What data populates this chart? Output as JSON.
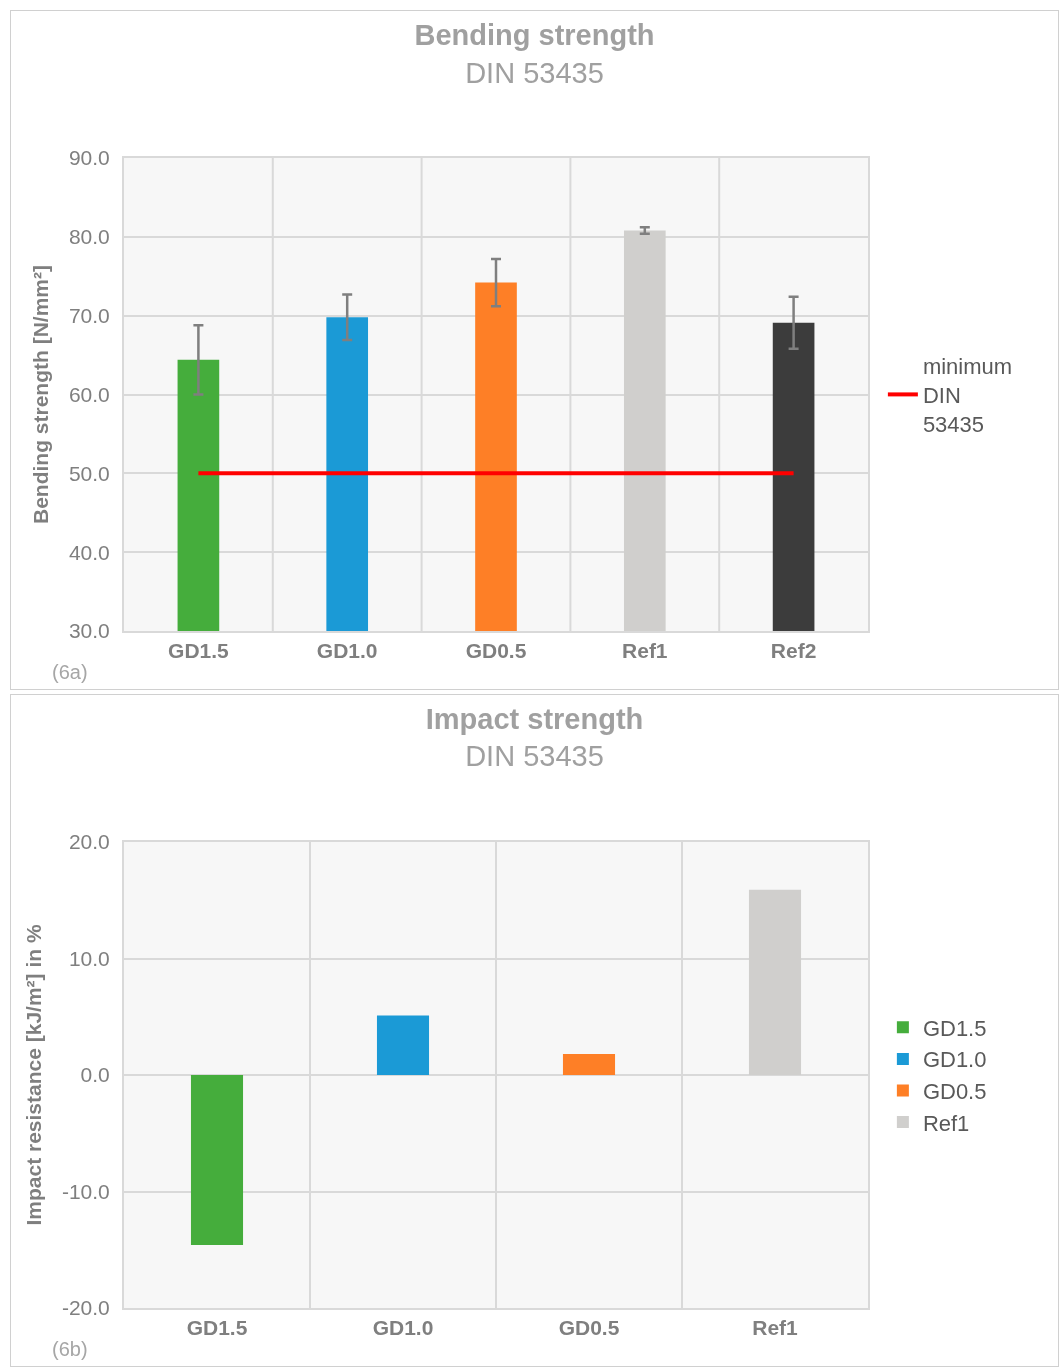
{
  "chart_data": [
    {
      "type": "bar",
      "title": "Bending strength",
      "subtitle": "DIN 53435",
      "ylabel": "Bending strength [N/mm²]",
      "categories": [
        "GD1.5",
        "GD1.0",
        "GD0.5",
        "Ref1",
        "Ref2"
      ],
      "series": [
        {
          "values": [
            64.4,
            69.8,
            74.2,
            80.8,
            69.1
          ],
          "colors": [
            "#45ad3c",
            "#1b9ad6",
            "#fe7f26",
            "#d0cfcd",
            "#3c3c3c"
          ],
          "errors": [
            4.4,
            2.9,
            3.0,
            0.4,
            3.3
          ]
        },
        {
          "type": "line",
          "name": "minimum DIN 53435",
          "color": "#ff0000",
          "values": [
            50,
            50,
            50,
            50,
            50
          ]
        }
      ],
      "ylim": [
        30,
        90
      ],
      "yticks": [
        {
          "value": 30,
          "label": "30.0"
        },
        {
          "value": 40,
          "label": "40.0"
        },
        {
          "value": 50,
          "label": "50.0"
        },
        {
          "value": 60,
          "label": "60.0"
        },
        {
          "value": 70,
          "label": "70.0"
        },
        {
          "value": 80,
          "label": "80.0"
        },
        {
          "value": 90,
          "label": "90.0"
        }
      ],
      "grid": true,
      "legend": "right",
      "annotations": [
        "(6a)"
      ]
    },
    {
      "type": "bar",
      "title": "Impact strength",
      "subtitle": "DIN 53435",
      "ylabel": "Impact resistance [kJ/m²] in %",
      "categories": [
        "GD1.5",
        "GD1.0",
        "GD0.5",
        "Ref1"
      ],
      "series": [
        {
          "name": "GD1.5",
          "color": "#45ad3c",
          "values": [
            -14.6,
            null,
            null,
            null
          ]
        },
        {
          "name": "GD1.0",
          "color": "#1b9ad6",
          "values": [
            null,
            5.1,
            null,
            null
          ]
        },
        {
          "name": "GD0.5",
          "color": "#fe7f26",
          "values": [
            null,
            null,
            1.8,
            null
          ]
        },
        {
          "name": "Ref1",
          "color": "#d0cfcd",
          "values": [
            null,
            null,
            null,
            15.9
          ]
        }
      ],
      "ylim": [
        -20,
        20
      ],
      "yticks": [
        {
          "value": -20,
          "label": "-20.0"
        },
        {
          "value": -10,
          "label": "-10.0"
        },
        {
          "value": 0,
          "label": "0.0"
        },
        {
          "value": 10,
          "label": "10.0"
        },
        {
          "value": 20,
          "label": "20.0"
        }
      ],
      "grid": true,
      "legend": "right",
      "annotations": [
        "(6b)"
      ]
    }
  ]
}
